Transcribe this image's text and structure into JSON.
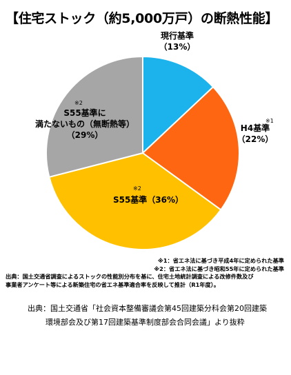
{
  "title": "【住宅ストック（約5,000万戸）の断熱性能】",
  "chart_data": {
    "type": "pie",
    "title": "【住宅ストック（約5,000万戸）の断熱性能】",
    "start_angle_deg": 0,
    "direction": "clockwise",
    "slices": [
      {
        "label": "現行基準",
        "value": 13,
        "value_label": "（13%）",
        "color": "#1CB3EC",
        "note_mark": ""
      },
      {
        "label": "H4基準",
        "value": 22,
        "value_label": "（22%）",
        "color": "#FF6611",
        "note_mark": "※1"
      },
      {
        "label": "S55基準",
        "value": 36,
        "value_label": "（36%）",
        "color": "#FFC000",
        "note_mark": "※2"
      },
      {
        "label": "S55基準に満たないもの（無断熱等）",
        "value": 29,
        "value_label": "（29%）",
        "color": "#A6A6A6",
        "note_mark": "※2"
      }
    ]
  },
  "labels": {
    "current": {
      "name": "現行基準",
      "pct": "（13%）"
    },
    "h4": {
      "mark": "※1",
      "name": "H4基準",
      "pct": "（22%）"
    },
    "s55": {
      "mark": "※2",
      "name": "S55基準（36%）"
    },
    "below": {
      "mark": "※2",
      "line1": "S55基準に",
      "line2": "満たないもの（無断熱等）",
      "pct": "（29%）"
    }
  },
  "notes": {
    "n1": "※1：省エネ法に基づき平成4年に定められた基準",
    "n2": "※2：省エネ法に基づき昭和55年に定められた基準",
    "source_line1": "出典：国土交通省調査によるストックの性能別分布を基に、住宅土地統計調査による改修件数及び",
    "source_line2": "事業者アンケート等による新築住宅の省エネ基準適合率を反映して推計（R1年度）。"
  },
  "citation": {
    "line1": "出典：国土交通省「社会資本整備審議会第45回建築分科会第20回建築",
    "line2": "環境部会及び第17回建築基準制度部会合同会議」より抜粋"
  }
}
